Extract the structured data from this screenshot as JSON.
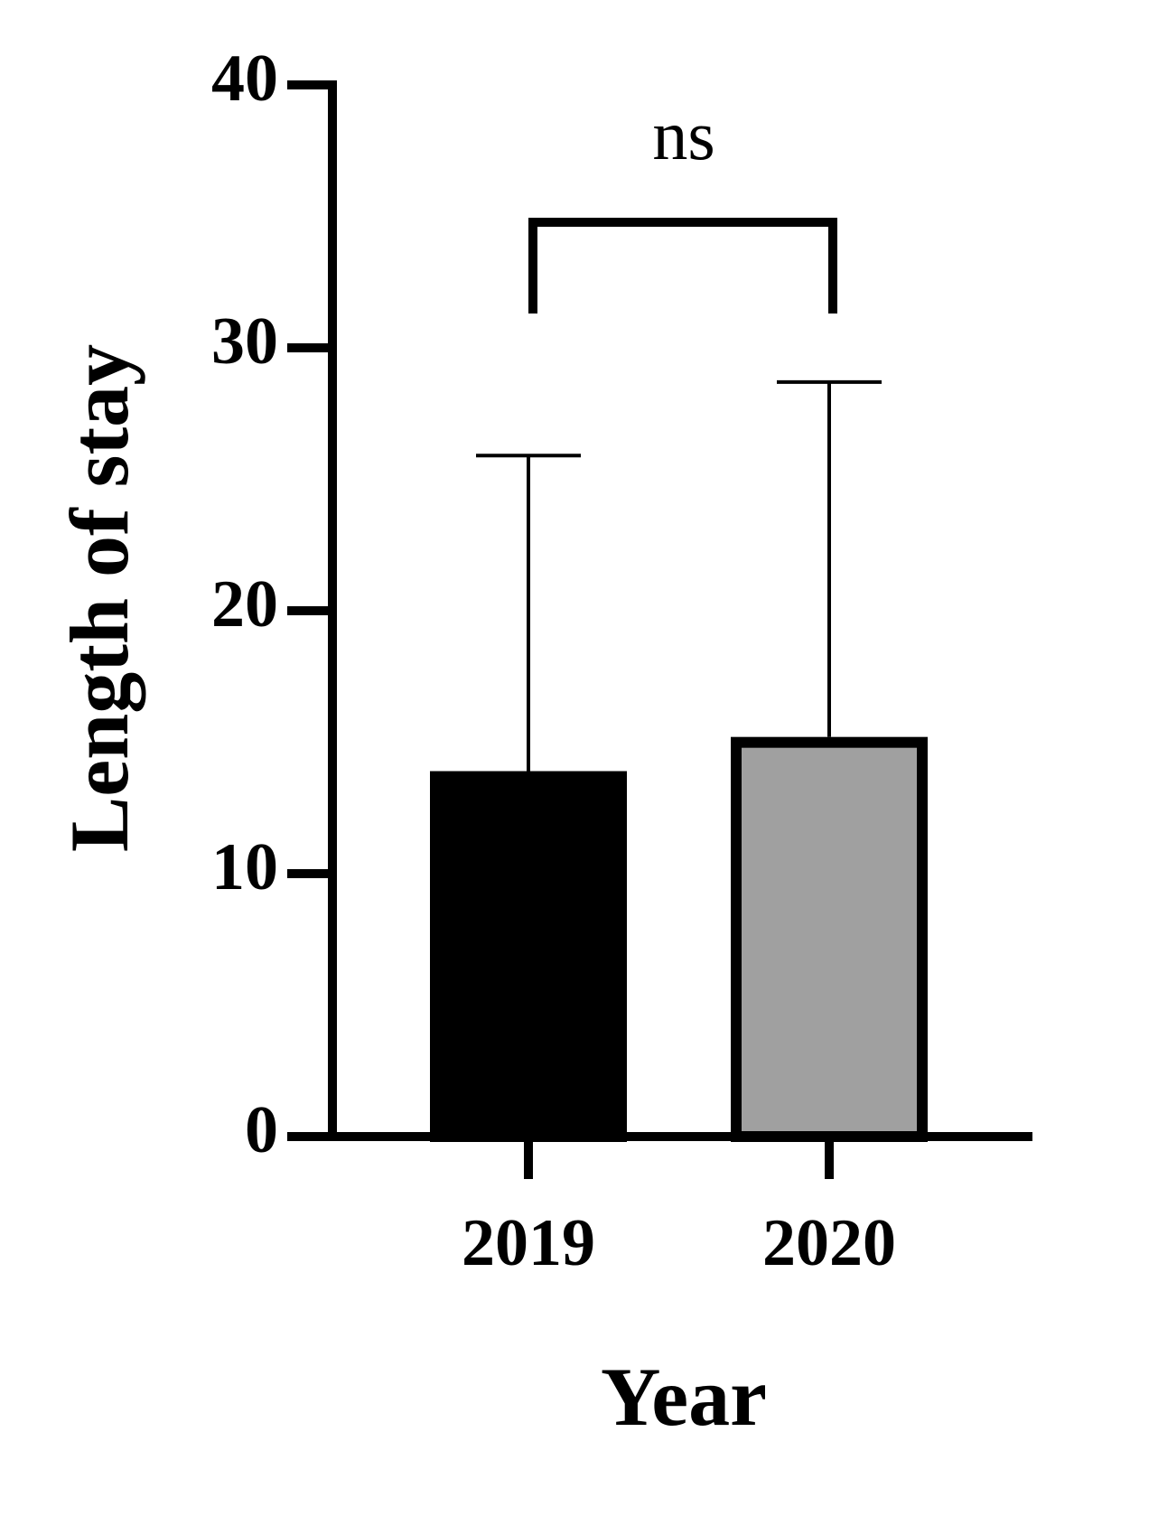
{
  "chart_data": {
    "type": "bar",
    "categories": [
      "2019",
      "2020"
    ],
    "values": [
      13.9,
      15.2
    ],
    "errors": [
      12.0,
      13.5
    ],
    "colors": [
      "#000000",
      "#a0a0a0"
    ],
    "xlabel": "Year",
    "ylabel": "Length of stay",
    "annotation": "ns",
    "ylim": [
      0,
      40
    ],
    "yticks": [
      0,
      10,
      20,
      30,
      40
    ]
  }
}
